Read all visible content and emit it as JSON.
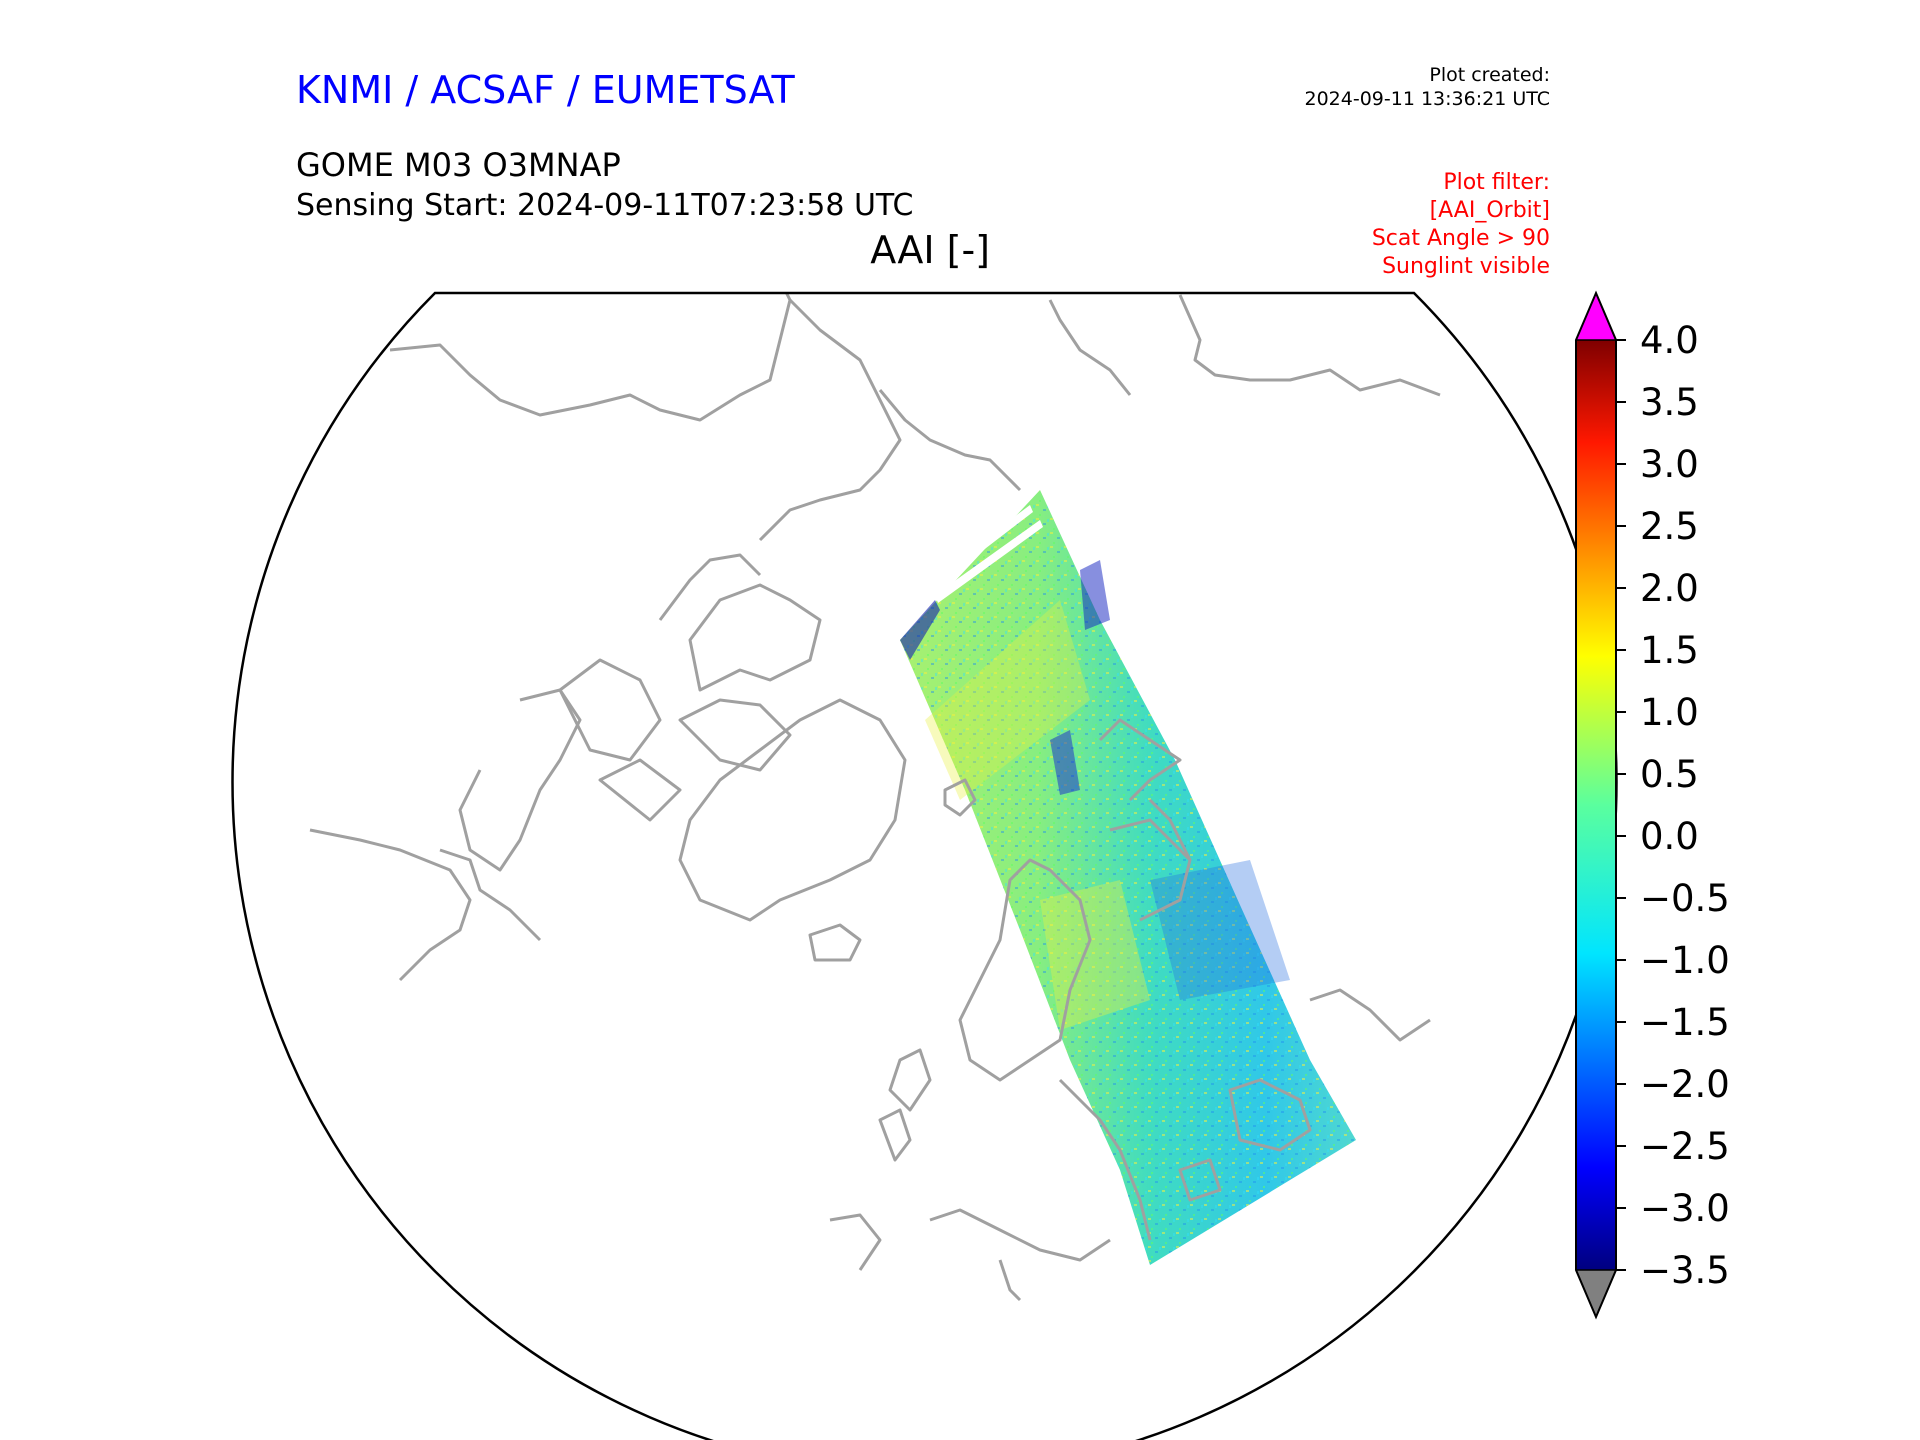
{
  "header": {
    "organisation": "KNMI / ACSAF / EUMETSAT",
    "created_label": "Plot created:",
    "created_time": "2024-09-11 13:36:21 UTC",
    "product": "GOME M03 O3MNAP",
    "sensing_start": "Sensing Start: 2024-09-11T07:23:58 UTC",
    "variable": "AAI [-]"
  },
  "filter": {
    "lines": [
      "Plot filter:",
      "[AAI_Orbit]",
      "Scat Angle > 90",
      "Sunglint visible"
    ]
  },
  "map": {
    "projection": "north polar stereographic",
    "coastline_color": "#a0a0a0",
    "boundary_color": "#000000",
    "swath": "orbit track over Scandinavia, Eastern Europe and Svalbard"
  },
  "colorbar": {
    "min": -3.5,
    "max": 4.0,
    "ticks": [
      "4.0",
      "3.5",
      "3.0",
      "2.5",
      "2.0",
      "1.5",
      "1.0",
      "0.5",
      "0.0",
      "−0.5",
      "−1.0",
      "−1.5",
      "−2.0",
      "−2.5",
      "−3.0",
      "−3.5"
    ],
    "colormap": "jet",
    "over_color": "#ff00ff",
    "under_color": "#808080"
  }
}
